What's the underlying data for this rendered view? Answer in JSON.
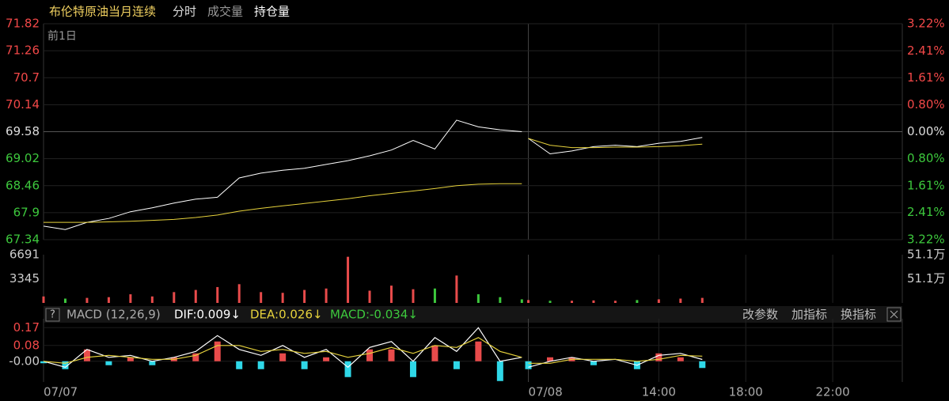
{
  "header": {
    "title": "布伦特原油当月连续",
    "tabs": [
      "分时",
      "成交量",
      "持仓量"
    ],
    "prev_day": "前1日"
  },
  "indicator_bar": {
    "help": "?",
    "name": "MACD (12,26,9)",
    "readouts": [
      "DIF:0.009↓",
      "DEA:0.026↓",
      "MACD:-0.034↓"
    ],
    "buttons": [
      "改参数",
      "加指标",
      "换指标"
    ]
  },
  "chart_data": [
    {
      "type": "line",
      "x": [
        0,
        60,
        120,
        180,
        240,
        300,
        360,
        420,
        480,
        540,
        600,
        660,
        720,
        780,
        840,
        900,
        960,
        1020,
        1080,
        1140,
        1200,
        1260,
        1320,
        1329,
        1338,
        1398,
        1458,
        1518,
        1578,
        1638,
        1698,
        1758,
        1818
      ],
      "xlim": [
        0,
        2370
      ],
      "xticks": [
        {
          "value": 0,
          "label": "07/07"
        },
        {
          "value": 1338,
          "label": "07/08"
        },
        {
          "value": 1698,
          "label": "14:00"
        },
        {
          "value": 1938,
          "label": "18:00"
        },
        {
          "value": 2178,
          "label": "22:00"
        }
      ],
      "ylim": [
        67.34,
        71.82
      ],
      "yticks": [
        71.82,
        71.26,
        70.7,
        70.14,
        69.58,
        69.02,
        68.46,
        67.9,
        67.34
      ],
      "y2lim": [
        -3.22,
        3.22
      ],
      "y2ticks": [
        {
          "value": 3.22,
          "label": "3.22%"
        },
        {
          "value": 2.41,
          "label": "2.41%"
        },
        {
          "value": 1.61,
          "label": "1.61%"
        },
        {
          "value": 0.8,
          "label": "0.80%"
        },
        {
          "value": 0,
          "label": "0.00%"
        },
        {
          "value": -0.8,
          "label": "0.80%"
        },
        {
          "value": -1.61,
          "label": "1.61%"
        },
        {
          "value": -2.41,
          "label": "2.41%"
        },
        {
          "value": -3.22,
          "label": "3.22%"
        }
      ],
      "grid": true,
      "series": [
        {
          "color": "#ffffff",
          "values": [
            67.62,
            67.55,
            67.7,
            67.78,
            67.92,
            68.0,
            68.1,
            68.18,
            68.22,
            68.62,
            68.72,
            68.78,
            68.82,
            68.9,
            68.98,
            69.08,
            69.2,
            69.4,
            69.22,
            69.82,
            69.68,
            69.62,
            69.58,
            null,
            69.44,
            69.12,
            69.18,
            69.27,
            69.3,
            69.27,
            69.34,
            69.38,
            69.46
          ]
        },
        {
          "color": "#e6d23c",
          "values": [
            67.7,
            67.7,
            67.7,
            67.71,
            67.72,
            67.74,
            67.76,
            67.8,
            67.85,
            67.93,
            67.99,
            68.04,
            68.09,
            68.14,
            68.19,
            68.25,
            68.3,
            68.35,
            68.4,
            68.46,
            68.49,
            68.5,
            68.5,
            null,
            69.44,
            69.3,
            69.25,
            69.25,
            69.26,
            69.26,
            69.27,
            69.29,
            69.32
          ]
        }
      ]
    },
    {
      "type": "bar",
      "ylim": [
        0,
        6691
      ],
      "yticks": [
        6691,
        3345
      ],
      "y2lim": [
        510500,
        511300
      ],
      "y2ticks": [
        {
          "value": 511300,
          "label": "51.1万"
        },
        {
          "value": 510900,
          "label": "51.1万"
        }
      ],
      "series": [
        {
          "color": "#e84b4b",
          "values": [
            900,
            600,
            700,
            800,
            1200,
            900,
            1500,
            1800,
            2200,
            2600,
            1500,
            1400,
            1800,
            2000,
            6400,
            1700,
            2400,
            1900,
            2000,
            3800,
            1200,
            800,
            500,
            null,
            400,
            300,
            300,
            350,
            300,
            400,
            500,
            600,
            700
          ]
        }
      ]
    },
    {
      "type": "macd",
      "ylim": [
        -0.105,
        0.215
      ],
      "yticks": [
        0.17,
        0.08,
        {
          "value": 0,
          "label": "-0.00"
        }
      ],
      "series": [
        {
          "color": "#ffffff",
          "values": [
            0.0,
            -0.03,
            0.06,
            0.02,
            0.03,
            0.0,
            0.02,
            0.05,
            0.13,
            0.06,
            0.03,
            0.08,
            0.02,
            0.06,
            -0.03,
            0.07,
            0.1,
            0.0,
            0.12,
            0.05,
            0.17,
            0.0,
            0.02,
            null,
            -0.03,
            0.0,
            0.02,
            0.0,
            0.01,
            -0.02,
            0.03,
            0.04,
            0.009
          ]
        },
        {
          "color": "#e6d23c",
          "values": [
            0.0,
            -0.01,
            0.02,
            0.03,
            0.02,
            0.01,
            0.01,
            0.03,
            0.08,
            0.08,
            0.05,
            0.06,
            0.04,
            0.05,
            0.02,
            0.04,
            0.07,
            0.04,
            0.08,
            0.07,
            0.12,
            0.05,
            0.02,
            null,
            -0.01,
            -0.01,
            0.01,
            0.01,
            0.01,
            0.0,
            0.01,
            0.03,
            0.026
          ]
        },
        {
          "color": "#e84b4b",
          "values": [
            -0.01,
            -0.04,
            0.06,
            -0.02,
            0.02,
            -0.02,
            0.02,
            0.04,
            0.1,
            -0.04,
            -0.04,
            0.04,
            -0.04,
            0.02,
            -0.08,
            0.06,
            0.06,
            -0.08,
            0.08,
            -0.04,
            0.1,
            -0.1,
            0.0,
            null,
            -0.04,
            0.02,
            0.02,
            -0.02,
            0.0,
            -0.04,
            0.04,
            0.02,
            -0.034
          ]
        }
      ]
    }
  ]
}
